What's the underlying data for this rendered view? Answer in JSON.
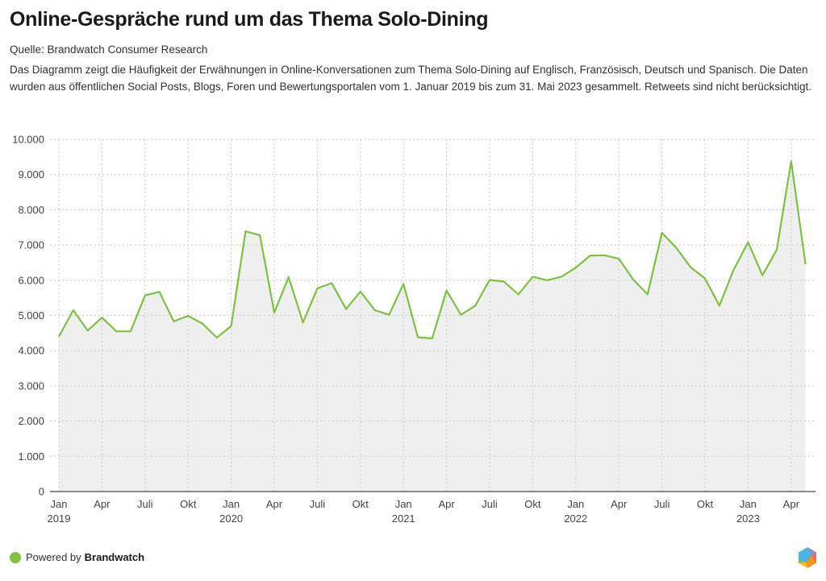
{
  "header": {
    "title": "Online-Gespräche rund um das Thema Solo-Dining",
    "source": "Quelle: Brandwatch Consumer Research",
    "description": "Das Diagramm zeigt die Häufigkeit der Erwähnungen in Online-Konversationen zum Thema Solo-Dining auf Englisch, Französisch, Deutsch und Spanisch. Die Daten wurden aus öffentlichen Social Posts, Blogs, Foren und Bewertungsportalen vom 1. Januar 2019 bis zum 31. Mai 2023 gesammelt. Retweets sind nicht berücksichtigt."
  },
  "footer": {
    "powered_by": "Powered by",
    "brand": "Brandwatch",
    "logo_icon": "brandwatch-hexagon-logo"
  },
  "colors": {
    "line": "#7dc242",
    "area": "#efefef",
    "grid": "#c8c8c8",
    "axis": "#666666"
  },
  "chart_data": {
    "type": "area",
    "title": "Online-Gespräche rund um das Thema Solo-Dining",
    "xlabel": "",
    "ylabel": "",
    "ylim": [
      0,
      10000
    ],
    "yticks": [
      0,
      1000,
      2000,
      3000,
      4000,
      5000,
      6000,
      7000,
      8000,
      9000,
      10000
    ],
    "ytick_labels": [
      "0",
      "1.000",
      "2.000",
      "3.000",
      "4.000",
      "5.000",
      "6.000",
      "7.000",
      "8.000",
      "9.000",
      "10.000"
    ],
    "grid": true,
    "legend": "none",
    "x_start": "2019-01",
    "x_end": "2023-05",
    "xticks": [
      {
        "month_index": 0,
        "label": "Jan",
        "year": "2019"
      },
      {
        "month_index": 3,
        "label": "Apr",
        "year": ""
      },
      {
        "month_index": 6,
        "label": "Juli",
        "year": ""
      },
      {
        "month_index": 9,
        "label": "Okt",
        "year": ""
      },
      {
        "month_index": 12,
        "label": "Jan",
        "year": "2020"
      },
      {
        "month_index": 15,
        "label": "Apr",
        "year": ""
      },
      {
        "month_index": 18,
        "label": "Juli",
        "year": ""
      },
      {
        "month_index": 21,
        "label": "Okt",
        "year": ""
      },
      {
        "month_index": 24,
        "label": "Jan",
        "year": "2021"
      },
      {
        "month_index": 27,
        "label": "Apr",
        "year": ""
      },
      {
        "month_index": 30,
        "label": "Juli",
        "year": ""
      },
      {
        "month_index": 33,
        "label": "Okt",
        "year": ""
      },
      {
        "month_index": 36,
        "label": "Jan",
        "year": "2022"
      },
      {
        "month_index": 39,
        "label": "Apr",
        "year": ""
      },
      {
        "month_index": 42,
        "label": "Juli",
        "year": ""
      },
      {
        "month_index": 45,
        "label": "Okt",
        "year": ""
      },
      {
        "month_index": 48,
        "label": "Jan",
        "year": "2023"
      },
      {
        "month_index": 51,
        "label": "Apr",
        "year": ""
      }
    ],
    "series": [
      {
        "name": "Erwähnungen",
        "values": [
          4400,
          5150,
          4570,
          4940,
          4550,
          4550,
          5570,
          5670,
          4830,
          4990,
          4770,
          4370,
          4700,
          7390,
          7280,
          5080,
          6090,
          4800,
          5770,
          5920,
          5180,
          5680,
          5150,
          5020,
          5900,
          4380,
          4350,
          5710,
          5020,
          5280,
          6010,
          5960,
          5600,
          6100,
          6000,
          6100,
          6360,
          6700,
          6710,
          6610,
          6020,
          5600,
          7350,
          6920,
          6370,
          6050,
          5280,
          6300,
          7080,
          6140,
          6870,
          9380,
          6450
        ]
      }
    ]
  }
}
